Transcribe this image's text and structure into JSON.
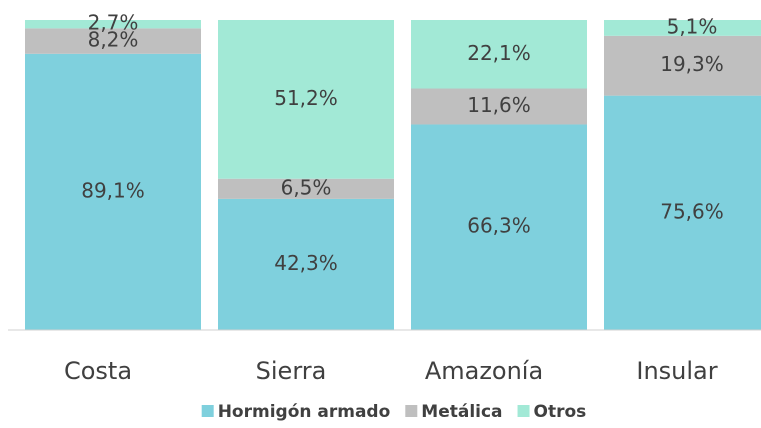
{
  "chart_data": {
    "type": "stacked_bar",
    "categories": [
      "Costa",
      "Sierra",
      "Amazonía",
      "Insular"
    ],
    "series": [
      {
        "name": "Hormigón armado",
        "color": "#7fd0dd",
        "values": [
          89.1,
          42.3,
          66.3,
          75.6
        ],
        "value_labels": [
          "89,1%",
          "42,3%",
          "66,3%",
          "75,6%"
        ]
      },
      {
        "name": "Metálica",
        "color": "#bfbfbf",
        "values": [
          8.2,
          6.5,
          11.6,
          19.3
        ],
        "value_labels": [
          "8,2%",
          "6,5%",
          "11,6%",
          "19,3%"
        ]
      },
      {
        "name": "Otros",
        "color": "#a2e9d6",
        "values": [
          2.7,
          51.2,
          22.1,
          5.1
        ],
        "value_labels": [
          "2,7%",
          "51,2%",
          "22,1%",
          "5,1%"
        ]
      }
    ],
    "legend": "bottom"
  }
}
